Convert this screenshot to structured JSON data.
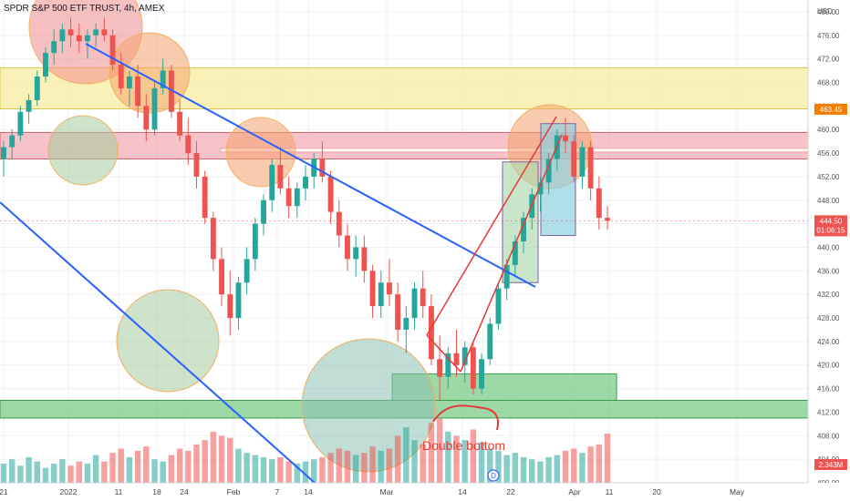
{
  "header": {
    "title": "SPDR S&P 500 ETF TRUST, 4h, AMEX",
    "currency": "USD"
  },
  "chart_data": {
    "type": "candlestick",
    "symbol_title": "SPDR S&P 500 ETF TRUST, 4h, AMEX",
    "y_ticks": [
      480,
      476,
      472,
      468,
      464,
      460,
      456,
      452,
      448,
      444,
      440,
      436,
      432,
      428,
      424,
      420,
      416,
      412,
      408,
      404,
      400
    ],
    "ylim": [
      400,
      482
    ],
    "x_ticks": [
      "21",
      "2022",
      "11",
      "18",
      "24",
      "Feb",
      "7",
      "14",
      "Mar",
      "14",
      "22",
      "Apr",
      "11",
      "20",
      "May"
    ],
    "price_labels": {
      "marker": "463.45",
      "last_price": "444.50",
      "countdown": "01:06:15",
      "volume": "2.343M"
    },
    "annotation": "Double bottom",
    "event_marker": "D",
    "colors": {
      "up": "#26a69a",
      "down": "#ef5350",
      "yellow_zone": "#f7e88a",
      "red_zone": "#f19aa3",
      "green_zone": "#5cbf6a",
      "trendline": "#2962ff",
      "channel": "#e53935"
    },
    "zones": [
      {
        "name": "yellow-resistance-zone",
        "from": 463.5,
        "to": 470.5
      },
      {
        "name": "red-resistance-zone",
        "from": 455,
        "to": 459.5
      },
      {
        "name": "green-support-zone-upper",
        "from": 414,
        "to": 418.5
      },
      {
        "name": "green-support-zone-lower",
        "from": 411,
        "to": 414
      }
    ],
    "candles": [
      [
        455,
        458,
        452,
        457
      ],
      [
        457,
        460,
        455,
        459
      ],
      [
        459,
        464,
        458,
        463
      ],
      [
        463,
        466,
        461,
        465
      ],
      [
        465,
        470,
        464,
        469
      ],
      [
        469,
        474,
        468,
        473
      ],
      [
        473,
        477,
        471,
        475
      ],
      [
        475,
        478,
        473,
        477
      ],
      [
        477,
        479,
        474,
        476
      ],
      [
        476,
        478,
        473,
        475
      ],
      [
        475,
        477,
        472,
        476
      ],
      [
        476,
        478,
        474,
        477
      ],
      [
        477,
        479,
        475,
        476
      ],
      [
        476,
        477,
        470,
        471
      ],
      [
        471,
        473,
        466,
        467
      ],
      [
        467,
        470,
        464,
        469
      ],
      [
        469,
        471,
        462,
        464
      ],
      [
        464,
        466,
        458,
        460
      ],
      [
        460,
        468,
        459,
        467
      ],
      [
        467,
        472,
        466,
        470
      ],
      [
        470,
        471,
        462,
        463
      ],
      [
        463,
        465,
        458,
        459
      ],
      [
        459,
        462,
        454,
        456
      ],
      [
        456,
        458,
        450,
        452
      ],
      [
        452,
        453,
        444,
        445
      ],
      [
        445,
        446,
        436,
        438
      ],
      [
        438,
        440,
        430,
        432
      ],
      [
        432,
        436,
        425,
        428
      ],
      [
        428,
        435,
        426,
        434
      ],
      [
        434,
        440,
        432,
        438
      ],
      [
        438,
        445,
        436,
        444
      ],
      [
        444,
        449,
        442,
        448
      ],
      [
        448,
        455,
        446,
        454
      ],
      [
        454,
        457,
        449,
        450
      ],
      [
        450,
        452,
        445,
        447
      ],
      [
        447,
        451,
        445,
        450
      ],
      [
        450,
        454,
        448,
        452
      ],
      [
        452,
        456,
        450,
        455
      ],
      [
        455,
        458,
        451,
        452
      ],
      [
        452,
        453,
        444,
        446
      ],
      [
        446,
        448,
        440,
        442
      ],
      [
        442,
        444,
        436,
        438
      ],
      [
        438,
        442,
        435,
        440
      ],
      [
        440,
        442,
        434,
        436
      ],
      [
        436,
        437,
        428,
        430
      ],
      [
        430,
        436,
        428,
        434
      ],
      [
        434,
        438,
        430,
        432
      ],
      [
        432,
        434,
        424,
        426
      ],
      [
        426,
        430,
        422,
        428
      ],
      [
        428,
        434,
        426,
        433
      ],
      [
        433,
        436,
        428,
        430
      ],
      [
        430,
        432,
        420,
        421
      ],
      [
        421,
        425,
        414,
        418
      ],
      [
        418,
        423,
        416,
        422
      ],
      [
        422,
        426,
        418,
        420
      ],
      [
        420,
        424,
        417,
        423
      ],
      [
        423,
        424,
        415,
        416
      ],
      [
        416,
        422,
        415,
        421
      ],
      [
        421,
        428,
        420,
        427
      ],
      [
        427,
        434,
        426,
        433
      ],
      [
        433,
        438,
        431,
        437
      ],
      [
        437,
        442,
        435,
        441
      ],
      [
        441,
        446,
        439,
        445
      ],
      [
        445,
        450,
        443,
        449
      ],
      [
        449,
        452,
        446,
        451
      ],
      [
        451,
        456,
        449,
        455
      ],
      [
        455,
        460,
        453,
        459
      ],
      [
        459,
        462,
        456,
        458
      ],
      [
        458,
        459,
        451,
        452
      ],
      [
        452,
        458,
        450,
        457
      ],
      [
        457,
        458,
        448,
        450
      ],
      [
        450,
        452,
        443,
        445
      ],
      [
        445,
        447,
        443,
        444.5
      ]
    ],
    "volumes": [
      0.9,
      1.1,
      0.8,
      1.2,
      1.0,
      0.7,
      0.9,
      1.1,
      0.8,
      1.0,
      0.9,
      1.3,
      1.0,
      1.4,
      1.6,
      1.2,
      1.5,
      1.7,
      1.1,
      1.0,
      1.3,
      1.6,
      1.5,
      1.8,
      2.0,
      2.4,
      2.2,
      2.1,
      1.6,
      1.4,
      1.3,
      1.2,
      1.1,
      1.2,
      1.0,
      0.9,
      1.0,
      1.1,
      1.2,
      1.4,
      1.6,
      1.5,
      1.3,
      1.4,
      1.7,
      1.5,
      1.6,
      2.2,
      2.6,
      2.0,
      1.8,
      2.8,
      3.0,
      2.4,
      2.2,
      2.0,
      2.5,
      1.9,
      1.6,
      1.5,
      1.3,
      1.4,
      1.2,
      1.1,
      1.0,
      1.2,
      1.3,
      1.5,
      1.6,
      1.4,
      1.7,
      1.8,
      2.3
    ]
  }
}
